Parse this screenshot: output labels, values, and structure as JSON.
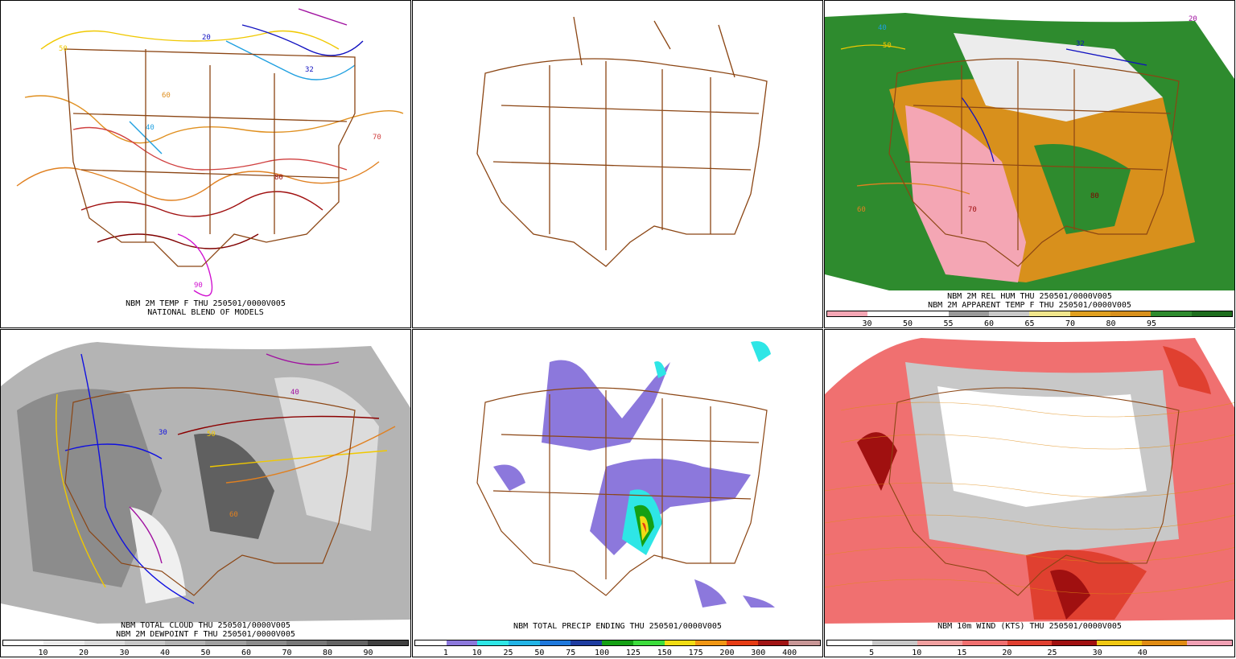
{
  "panels": [
    {
      "id": "temp",
      "captions": [
        "NBM 2M TEMP F THU 250501/0000V005",
        "NATIONAL BLEND OF MODELS"
      ],
      "contour_labels": [
        "20",
        "32",
        "40",
        "50",
        "60",
        "70",
        "80",
        "90"
      ],
      "colorbar": null
    },
    {
      "id": "basemap",
      "captions": [],
      "contour_labels": [],
      "colorbar": null
    },
    {
      "id": "relhum",
      "captions": [
        "NBM 2M REL HUM THU 250501/0000V005",
        "NBM 2M APPARENT TEMP F THU 250501/0000V005"
      ],
      "contour_labels": [
        "20",
        "32",
        "40",
        "50",
        "60",
        "70",
        "80"
      ],
      "colorbar": {
        "labels": [
          "30",
          "50",
          "55",
          "60",
          "65",
          "70",
          "80",
          "95"
        ],
        "colors": [
          "#f4a6b4",
          "#ffffff",
          "#ffffff",
          "#9a9a9a",
          "#c8c8c8",
          "#f0e68c",
          "#e0a020",
          "#d8901c",
          "#2e8b2e",
          "#1e6e1e"
        ]
      }
    },
    {
      "id": "cloud",
      "captions": [
        "NBM TOTAL CLOUD THU 250501/0000V005",
        "NBM 2M DEWPOINT F THU 250501/0000V005"
      ],
      "contour_labels": [
        "30",
        "40",
        "50",
        "60"
      ],
      "colorbar": {
        "labels": [
          "10",
          "20",
          "30",
          "40",
          "50",
          "60",
          "70",
          "80",
          "90"
        ],
        "colors": [
          "#ffffff",
          "#ececec",
          "#dcdcdc",
          "#c8c8c8",
          "#b4b4b4",
          "#a0a0a0",
          "#8c8c8c",
          "#787878",
          "#646464",
          "#404040"
        ]
      }
    },
    {
      "id": "precip",
      "captions": [
        "NBM TOTAL PRECIP ENDING THU 250501/0000V005"
      ],
      "contour_labels": [],
      "colorbar": {
        "labels": [
          "1",
          "10",
          "25",
          "50",
          "75",
          "100",
          "125",
          "150",
          "175",
          "200",
          "300",
          "400"
        ],
        "colors": [
          "#ffffff",
          "#8c78dc",
          "#2ee6e6",
          "#22b4e6",
          "#1e78dc",
          "#1e3ca0",
          "#14a014",
          "#3cdc3c",
          "#f0dc14",
          "#f09614",
          "#e63c14",
          "#a01414",
          "#c89696"
        ]
      }
    },
    {
      "id": "wind",
      "captions": [
        "NBM 10m WIND (KTS) THU 250501/0000V005"
      ],
      "contour_labels": [],
      "colorbar": {
        "labels": [
          "5",
          "10",
          "15",
          "20",
          "25",
          "30",
          "40"
        ],
        "colors": [
          "#ffffff",
          "#c8c8c8",
          "#f0a0a0",
          "#f07070",
          "#e04030",
          "#a01010",
          "#f0c814",
          "#e08c14",
          "#f0a0b4"
        ]
      }
    }
  ]
}
